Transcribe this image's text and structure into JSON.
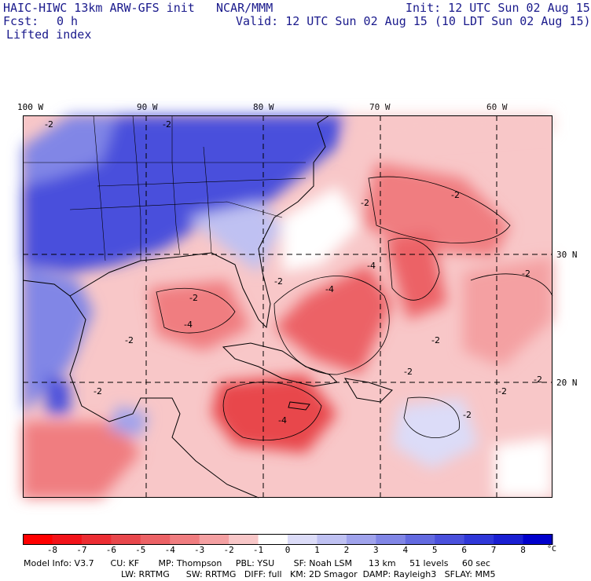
{
  "header": {
    "title": "HAIC-HIWC 13km ARW-GFS init",
    "center": "NCAR/MMM",
    "init": "Init: 12 UTC Sun 02 Aug 15",
    "fcst_label": "Fcst:",
    "fcst_value": "0 h",
    "valid": "Valid: 12 UTC Sun 02 Aug 15 (10 LDT Sun 02 Aug 15)",
    "field": "Lifted index"
  },
  "map": {
    "lon_labels": [
      "100 W",
      "90 W",
      "80 W",
      "70 W",
      "60 W"
    ],
    "lat_labels": [
      "30 N",
      "20 N"
    ],
    "contour_labels": [
      "-2",
      "-4"
    ]
  },
  "legend": {
    "unit": "°C",
    "ticks": [
      "-8",
      "-7",
      "-6",
      "-5",
      "-4",
      "-3",
      "-2",
      "-1",
      "0",
      "1",
      "2",
      "3",
      "4",
      "5",
      "6",
      "7",
      "8"
    ],
    "colors": [
      "#ff0000",
      "#f2131a",
      "#ec2d33",
      "#e8474c",
      "#ec6266",
      "#f07d80",
      "#f4a0a2",
      "#f8c7c8",
      "#ffffff",
      "#dcdcf8",
      "#bfc1f2",
      "#a0a3ec",
      "#8186e6",
      "#636ae0",
      "#4a50dc",
      "#2f37d8",
      "#1a1fd2",
      "#0000cc"
    ]
  },
  "model_info": {
    "line1": "Model Info: V3.7      CU: KF       MP: Thompson     PBL: YSU       SF: Noah LSM      13 km     51 levels     60 sec",
    "line2": "LW: RRTMG      SW: RRTMG   DIFF: full   KM: 2D Smagor  DAMP: Rayleigh3   SFLAY: MM5"
  }
}
